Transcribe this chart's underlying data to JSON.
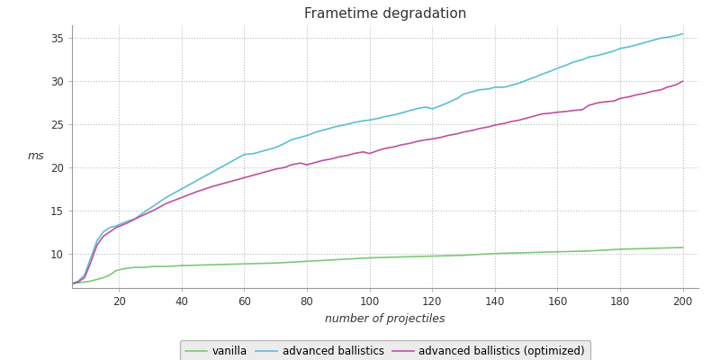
{
  "title": "Frametime degradation",
  "xlabel": "number of projectiles",
  "ylabel": "ms",
  "xlim": [
    5,
    205
  ],
  "ylim": [
    6.0,
    36.5
  ],
  "xticks": [
    20,
    40,
    60,
    80,
    100,
    120,
    140,
    160,
    180,
    200
  ],
  "yticks": [
    10,
    15,
    20,
    25,
    30,
    35
  ],
  "background_color": "#ffffff",
  "grid_color": "#bbbbbb",
  "spine_color": "#999999",
  "colors": {
    "vanilla": "#7dc87a",
    "advanced": "#5bbfd4",
    "optimized": "#c050a0"
  },
  "vanilla_x": [
    5,
    7,
    9,
    11,
    13,
    15,
    17,
    19,
    21,
    23,
    25,
    28,
    31,
    35,
    40,
    45,
    50,
    55,
    60,
    65,
    70,
    75,
    80,
    85,
    90,
    95,
    100,
    105,
    110,
    115,
    120,
    125,
    130,
    135,
    140,
    145,
    150,
    155,
    160,
    165,
    170,
    175,
    180,
    185,
    190,
    195,
    200
  ],
  "vanilla_y": [
    6.5,
    6.6,
    6.7,
    6.8,
    7.0,
    7.2,
    7.5,
    8.0,
    8.2,
    8.3,
    8.4,
    8.4,
    8.5,
    8.5,
    8.6,
    8.65,
    8.7,
    8.75,
    8.8,
    8.85,
    8.9,
    9.0,
    9.1,
    9.2,
    9.3,
    9.4,
    9.5,
    9.55,
    9.6,
    9.65,
    9.7,
    9.75,
    9.8,
    9.9,
    10.0,
    10.05,
    10.1,
    10.15,
    10.2,
    10.25,
    10.3,
    10.4,
    10.5,
    10.55,
    10.6,
    10.65,
    10.7
  ],
  "advanced_x": [
    5,
    7,
    9,
    11,
    13,
    15,
    17,
    19,
    21,
    23,
    25,
    28,
    31,
    35,
    40,
    45,
    50,
    55,
    60,
    63,
    65,
    67,
    70,
    73,
    75,
    78,
    80,
    83,
    85,
    88,
    90,
    93,
    95,
    98,
    100,
    103,
    105,
    108,
    110,
    113,
    115,
    118,
    120,
    123,
    125,
    128,
    130,
    133,
    135,
    138,
    140,
    143,
    145,
    148,
    150,
    153,
    155,
    158,
    160,
    163,
    165,
    168,
    170,
    173,
    175,
    178,
    180,
    183,
    185,
    188,
    190,
    193,
    195,
    198,
    200
  ],
  "advanced_y": [
    6.5,
    6.8,
    7.5,
    9.5,
    11.5,
    12.5,
    13.0,
    13.2,
    13.5,
    13.8,
    14.0,
    14.8,
    15.5,
    16.5,
    17.5,
    18.5,
    19.5,
    20.5,
    21.5,
    21.6,
    21.8,
    22.0,
    22.3,
    22.8,
    23.2,
    23.5,
    23.7,
    24.1,
    24.3,
    24.6,
    24.8,
    25.0,
    25.2,
    25.4,
    25.5,
    25.7,
    25.9,
    26.1,
    26.3,
    26.6,
    26.8,
    27.0,
    26.8,
    27.2,
    27.5,
    28.0,
    28.5,
    28.8,
    29.0,
    29.1,
    29.3,
    29.3,
    29.5,
    29.8,
    30.1,
    30.5,
    30.8,
    31.2,
    31.5,
    31.9,
    32.2,
    32.5,
    32.8,
    33.0,
    33.2,
    33.5,
    33.8,
    34.0,
    34.2,
    34.5,
    34.7,
    35.0,
    35.1,
    35.3,
    35.5
  ],
  "optimized_x": [
    5,
    7,
    9,
    11,
    13,
    15,
    17,
    19,
    21,
    23,
    25,
    28,
    31,
    35,
    40,
    45,
    50,
    55,
    60,
    63,
    65,
    67,
    70,
    73,
    75,
    78,
    80,
    83,
    85,
    88,
    90,
    93,
    95,
    98,
    100,
    103,
    105,
    108,
    110,
    113,
    115,
    118,
    120,
    123,
    125,
    128,
    130,
    133,
    135,
    138,
    140,
    143,
    145,
    148,
    150,
    153,
    155,
    158,
    160,
    163,
    165,
    168,
    170,
    173,
    175,
    178,
    180,
    183,
    185,
    188,
    190,
    193,
    195,
    198,
    200
  ],
  "optimized_y": [
    6.5,
    6.7,
    7.2,
    9.0,
    11.0,
    12.0,
    12.5,
    13.0,
    13.3,
    13.6,
    14.0,
    14.5,
    15.0,
    15.8,
    16.5,
    17.2,
    17.8,
    18.3,
    18.8,
    19.1,
    19.3,
    19.5,
    19.8,
    20.0,
    20.3,
    20.5,
    20.3,
    20.6,
    20.8,
    21.0,
    21.2,
    21.4,
    21.6,
    21.8,
    21.6,
    22.0,
    22.2,
    22.4,
    22.6,
    22.8,
    23.0,
    23.2,
    23.3,
    23.5,
    23.7,
    23.9,
    24.1,
    24.3,
    24.5,
    24.7,
    24.9,
    25.1,
    25.3,
    25.5,
    25.7,
    26.0,
    26.2,
    26.3,
    26.4,
    26.5,
    26.6,
    26.7,
    27.2,
    27.5,
    27.6,
    27.7,
    28.0,
    28.2,
    28.4,
    28.6,
    28.8,
    29.0,
    29.3,
    29.6,
    30.0
  ],
  "legend_labels": [
    "vanilla",
    "advanced ballistics",
    "advanced ballistics (optimized)"
  ],
  "legend_bg": "#e8e8e8"
}
